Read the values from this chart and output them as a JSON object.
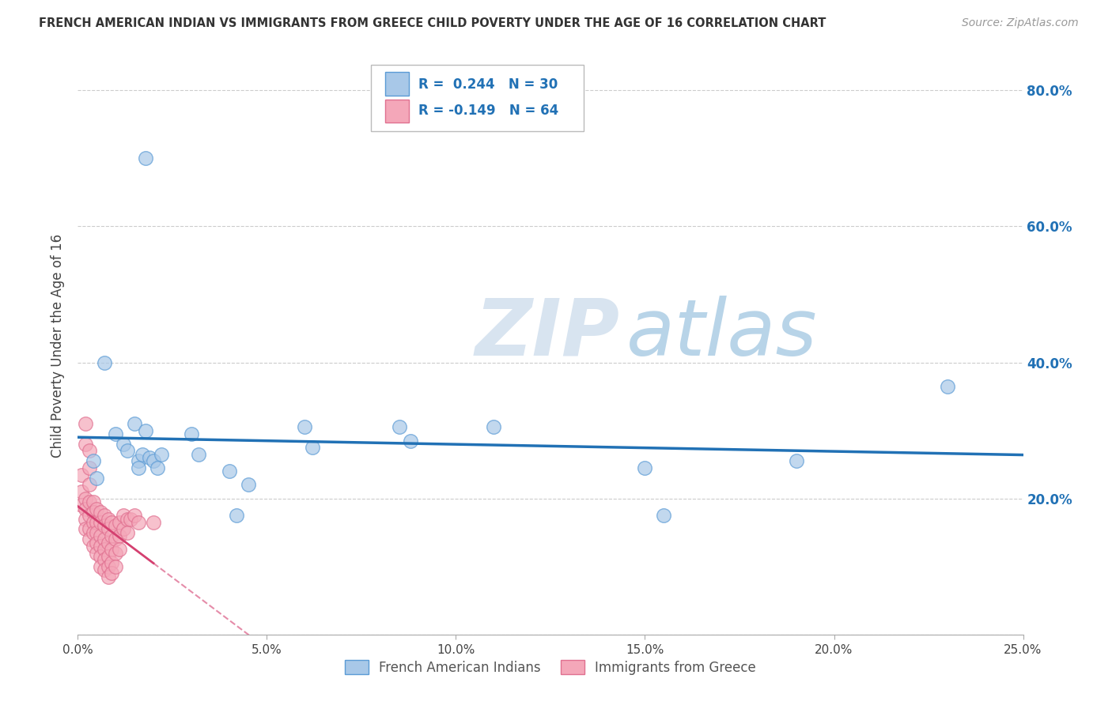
{
  "title": "FRENCH AMERICAN INDIAN VS IMMIGRANTS FROM GREECE CHILD POVERTY UNDER THE AGE OF 16 CORRELATION CHART",
  "source": "Source: ZipAtlas.com",
  "ylabel": "Child Poverty Under the Age of 16",
  "xlim": [
    0.0,
    0.25
  ],
  "ylim": [
    0.0,
    0.85
  ],
  "ytick_vals": [
    0.0,
    0.2,
    0.4,
    0.6,
    0.8
  ],
  "ytick_labels": [
    "",
    "20.0%",
    "40.0%",
    "60.0%",
    "80.0%"
  ],
  "blue_R": 0.244,
  "blue_N": 30,
  "pink_R": -0.149,
  "pink_N": 64,
  "blue_color": "#a8c8e8",
  "pink_color": "#f4a7b9",
  "blue_edge_color": "#5b9bd5",
  "pink_edge_color": "#e07090",
  "blue_line_color": "#2171b5",
  "pink_line_color": "#d44070",
  "blue_points": [
    [
      0.004,
      0.255
    ],
    [
      0.005,
      0.23
    ],
    [
      0.007,
      0.4
    ],
    [
      0.01,
      0.295
    ],
    [
      0.012,
      0.28
    ],
    [
      0.013,
      0.27
    ],
    [
      0.015,
      0.31
    ],
    [
      0.016,
      0.255
    ],
    [
      0.016,
      0.245
    ],
    [
      0.017,
      0.265
    ],
    [
      0.018,
      0.3
    ],
    [
      0.019,
      0.26
    ],
    [
      0.02,
      0.255
    ],
    [
      0.021,
      0.245
    ],
    [
      0.022,
      0.265
    ],
    [
      0.03,
      0.295
    ],
    [
      0.032,
      0.265
    ],
    [
      0.04,
      0.24
    ],
    [
      0.042,
      0.175
    ],
    [
      0.045,
      0.22
    ],
    [
      0.06,
      0.305
    ],
    [
      0.062,
      0.275
    ],
    [
      0.085,
      0.305
    ],
    [
      0.088,
      0.285
    ],
    [
      0.11,
      0.305
    ],
    [
      0.15,
      0.245
    ],
    [
      0.155,
      0.175
    ],
    [
      0.19,
      0.255
    ],
    [
      0.23,
      0.365
    ],
    [
      0.018,
      0.7
    ]
  ],
  "pink_points": [
    [
      0.001,
      0.235
    ],
    [
      0.001,
      0.21
    ],
    [
      0.001,
      0.19
    ],
    [
      0.002,
      0.31
    ],
    [
      0.002,
      0.28
    ],
    [
      0.002,
      0.2
    ],
    [
      0.002,
      0.185
    ],
    [
      0.002,
      0.17
    ],
    [
      0.002,
      0.155
    ],
    [
      0.003,
      0.27
    ],
    [
      0.003,
      0.245
    ],
    [
      0.003,
      0.22
    ],
    [
      0.003,
      0.195
    ],
    [
      0.003,
      0.175
    ],
    [
      0.003,
      0.155
    ],
    [
      0.003,
      0.14
    ],
    [
      0.004,
      0.195
    ],
    [
      0.004,
      0.18
    ],
    [
      0.004,
      0.165
    ],
    [
      0.004,
      0.15
    ],
    [
      0.004,
      0.13
    ],
    [
      0.005,
      0.185
    ],
    [
      0.005,
      0.165
    ],
    [
      0.005,
      0.15
    ],
    [
      0.005,
      0.135
    ],
    [
      0.005,
      0.12
    ],
    [
      0.006,
      0.18
    ],
    [
      0.006,
      0.165
    ],
    [
      0.006,
      0.145
    ],
    [
      0.006,
      0.13
    ],
    [
      0.006,
      0.115
    ],
    [
      0.006,
      0.1
    ],
    [
      0.007,
      0.175
    ],
    [
      0.007,
      0.16
    ],
    [
      0.007,
      0.14
    ],
    [
      0.007,
      0.125
    ],
    [
      0.007,
      0.11
    ],
    [
      0.007,
      0.095
    ],
    [
      0.008,
      0.17
    ],
    [
      0.008,
      0.155
    ],
    [
      0.008,
      0.135
    ],
    [
      0.008,
      0.115
    ],
    [
      0.008,
      0.1
    ],
    [
      0.008,
      0.085
    ],
    [
      0.009,
      0.165
    ],
    [
      0.009,
      0.145
    ],
    [
      0.009,
      0.125
    ],
    [
      0.009,
      0.105
    ],
    [
      0.009,
      0.09
    ],
    [
      0.01,
      0.16
    ],
    [
      0.01,
      0.14
    ],
    [
      0.01,
      0.12
    ],
    [
      0.01,
      0.1
    ],
    [
      0.011,
      0.165
    ],
    [
      0.011,
      0.145
    ],
    [
      0.011,
      0.125
    ],
    [
      0.012,
      0.175
    ],
    [
      0.012,
      0.155
    ],
    [
      0.013,
      0.17
    ],
    [
      0.013,
      0.15
    ],
    [
      0.014,
      0.17
    ],
    [
      0.015,
      0.175
    ],
    [
      0.016,
      0.165
    ],
    [
      0.02,
      0.165
    ]
  ]
}
